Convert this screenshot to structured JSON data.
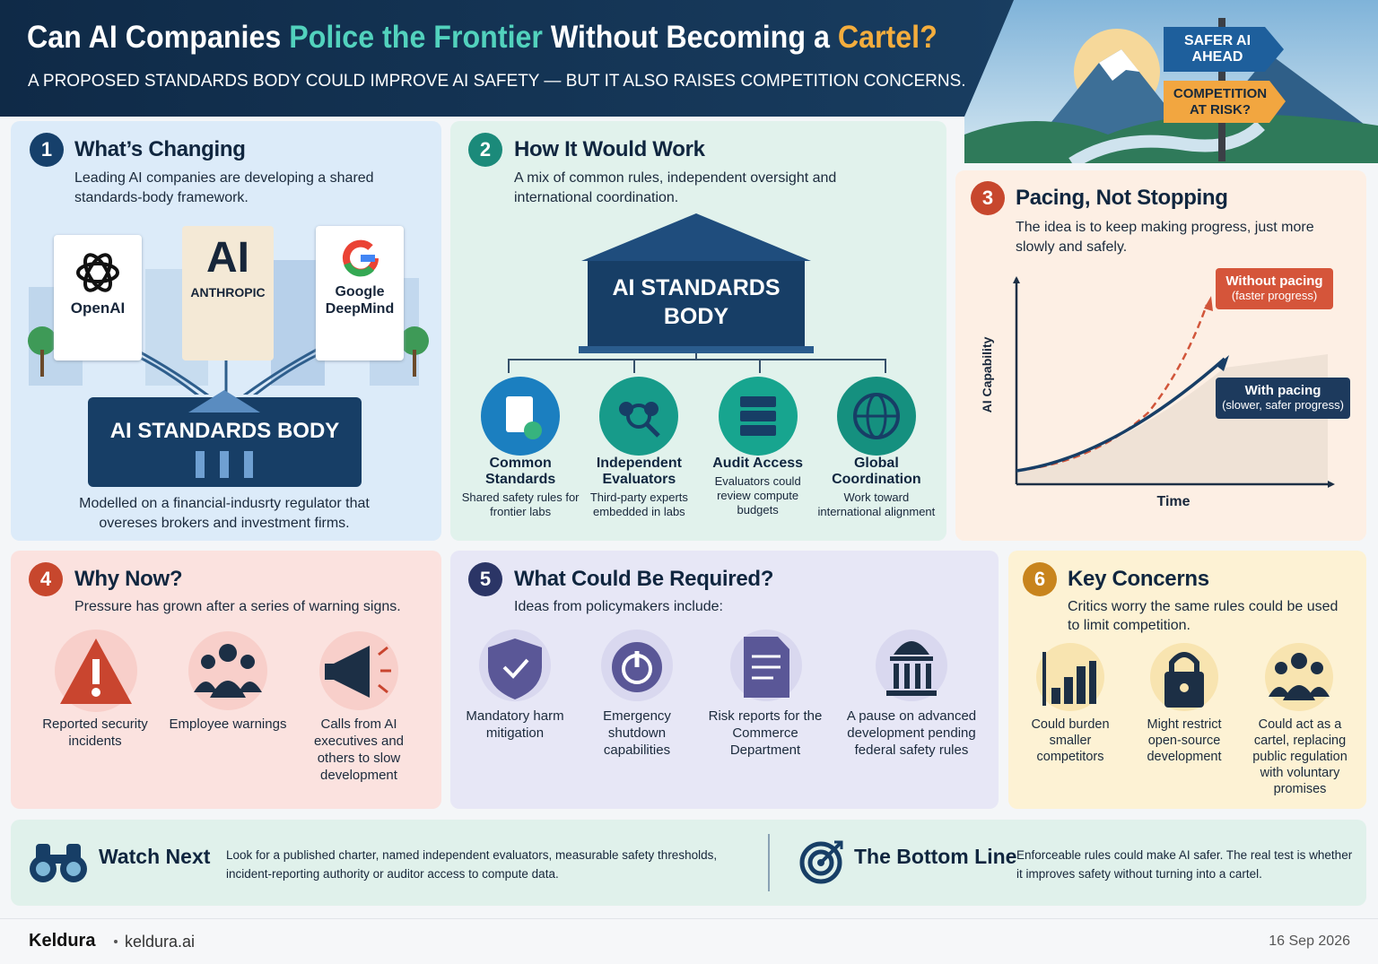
{
  "header": {
    "title": {
      "lead": "Can AI Companies",
      "highlight": "Police the Frontier",
      "middle": "Without Becoming a",
      "end": "Cartel?"
    },
    "subtitle": "A PROPOSED STANDARDS BODY COULD IMPROVE AI SAFETY — BUT IT ALSO RAISES COMPETITION CONCERNS.",
    "signs": [
      "SAFER AI AHEAD",
      "COMPETITION AT RISK?"
    ]
  },
  "sections": [
    {
      "number": "1",
      "title": "What’s Changing",
      "text": "Leading AI companies are developing a shared standards-body framework.",
      "logos": [
        {
          "name": "OpenAI"
        },
        {
          "mark": "AI",
          "name": "ANTHROPIC"
        },
        {
          "name": "Google DeepMind"
        }
      ],
      "body_label": "AI STANDARDS BODY",
      "note": "Modelled on a financial-indusrty regulator that overeses brokers and investment firms."
    },
    {
      "number": "2",
      "title": "How It Would Work",
      "text": "A mix of common rules, independent oversight and international coordination.",
      "body_label": "AI STANDARDS BODY",
      "items": [
        {
          "title": "Common Standards",
          "text": "Shared safety rules for frontier labs"
        },
        {
          "title": "Independent Evaluators",
          "text": "Third-party experts embedded in labs"
        },
        {
          "title": "Audit Access",
          "text": "Evaluators could review compute budgets"
        },
        {
          "title": "Global Coordination",
          "text": "Work toward international alignment"
        }
      ]
    },
    {
      "number": "3",
      "title": "Pacing, Not Stopping",
      "text": "The idea is to keep making progress, just more slowly and safely.",
      "chart": {
        "y_label": "AI Capability",
        "x_label": "Time",
        "annotations": [
          {
            "title": "Without pacing",
            "note": "(faster progress)"
          },
          {
            "title": "With pacing",
            "note": "(slower, safer progress)"
          }
        ]
      }
    },
    {
      "number": "4",
      "title": "Why Now?",
      "text": "Pressure has grown after a series of warning signs.",
      "items": [
        "Reported security incidents",
        "Employee warnings",
        "Calls from AI executives and others to slow development"
      ]
    },
    {
      "number": "5",
      "title": "What Could Be Required?",
      "text": "Ideas from policymakers include:",
      "items": [
        "Mandatory harm mitigation",
        "Emergency shutdown capabilities",
        "Risk reports for the Commerce Department",
        "A pause on advanced development pending federal safety rules"
      ]
    },
    {
      "number": "6",
      "title": "Key Concerns",
      "text": "Critics worry the same rules could be used to limit competition.",
      "items": [
        "Could burden smaller competitors",
        "Might restrict open-source development",
        "Could act as a cartel, replacing public regulation with voluntary promises"
      ]
    }
  ],
  "strip": {
    "watch": {
      "title": "Watch Next",
      "text": "Look for a published charter, named independent evaluators, measurable safety thresholds, incident-reporting authority or auditor access to compute data."
    },
    "bottom": {
      "title": "The Bottom Line",
      "text": "Enforceable rules could make AI safer. The real test is whether it improves safety without turning into a cartel."
    }
  },
  "footer": {
    "brand": "Keldura",
    "site": "keldura.ai",
    "date": "16 Sep 2026"
  }
}
